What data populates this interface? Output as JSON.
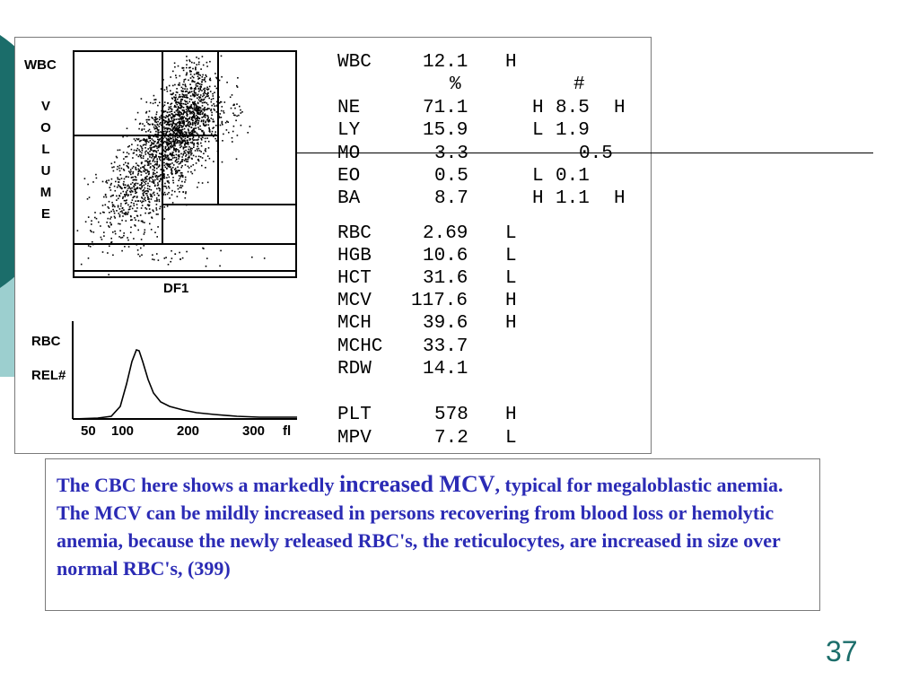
{
  "scatter": {
    "y_label": "WBC",
    "volume_letters": [
      "V",
      "O",
      "L",
      "U",
      "M",
      "E"
    ],
    "x_label": "DF1"
  },
  "histogram": {
    "y_label_top": "RBC",
    "y_label_bottom": "REL#",
    "x_ticks": [
      "50",
      "100",
      "200",
      "300",
      "fl"
    ]
  },
  "results": {
    "wbc": {
      "name": "WBC",
      "value": "12.1",
      "flag": "H"
    },
    "header_pct": "%",
    "header_abs": "#",
    "diff": [
      {
        "name": "NE",
        "pct": "71.1",
        "flag": "H",
        "abs": "8.5",
        "abs_flag": "H"
      },
      {
        "name": "LY",
        "pct": "15.9",
        "flag": "L",
        "abs": "1.9",
        "abs_flag": ""
      },
      {
        "name": "MO",
        "pct": "3.3",
        "flag": "",
        "abs": "0.5",
        "abs_flag": ""
      },
      {
        "name": "EO",
        "pct": "0.5",
        "flag": "L",
        "abs": "0.1",
        "abs_flag": ""
      },
      {
        "name": "BA",
        "pct": "8.7",
        "flag": "H",
        "abs": "1.1",
        "abs_flag": "H"
      }
    ],
    "rbc_indices": [
      {
        "name": "RBC",
        "value": "2.69",
        "flag": "L"
      },
      {
        "name": "HGB",
        "value": "10.6",
        "flag": "L"
      },
      {
        "name": "HCT",
        "value": "31.6",
        "flag": "L"
      },
      {
        "name": "MCV",
        "value": "117.6",
        "flag": "H"
      },
      {
        "name": "MCH",
        "value": "39.6",
        "flag": "H"
      },
      {
        "name": "MCHC",
        "value": "33.7",
        "flag": ""
      },
      {
        "name": "RDW",
        "value": "14.1",
        "flag": ""
      }
    ],
    "platelets": [
      {
        "name": "PLT",
        "value": "578",
        "flag": "H"
      },
      {
        "name": "MPV",
        "value": "7.2",
        "flag": "L"
      }
    ]
  },
  "caption": {
    "part1": "The CBC here shows a markedly ",
    "emphasis": "increased MCV",
    "part2": ", typical for megaloblastic anemia. The MCV can be mildly increased in persons recovering from blood loss or hemolytic anemia, because the newly released RBC's, the reticulocytes, are increased in size over normal RBC's, (399)"
  },
  "page_number": "37",
  "colors": {
    "caption_text": "#2b2bb5",
    "teal_dark": "#1b6d6a",
    "teal_light": "#9ccfcf",
    "page_number": "#1b6d6a"
  }
}
